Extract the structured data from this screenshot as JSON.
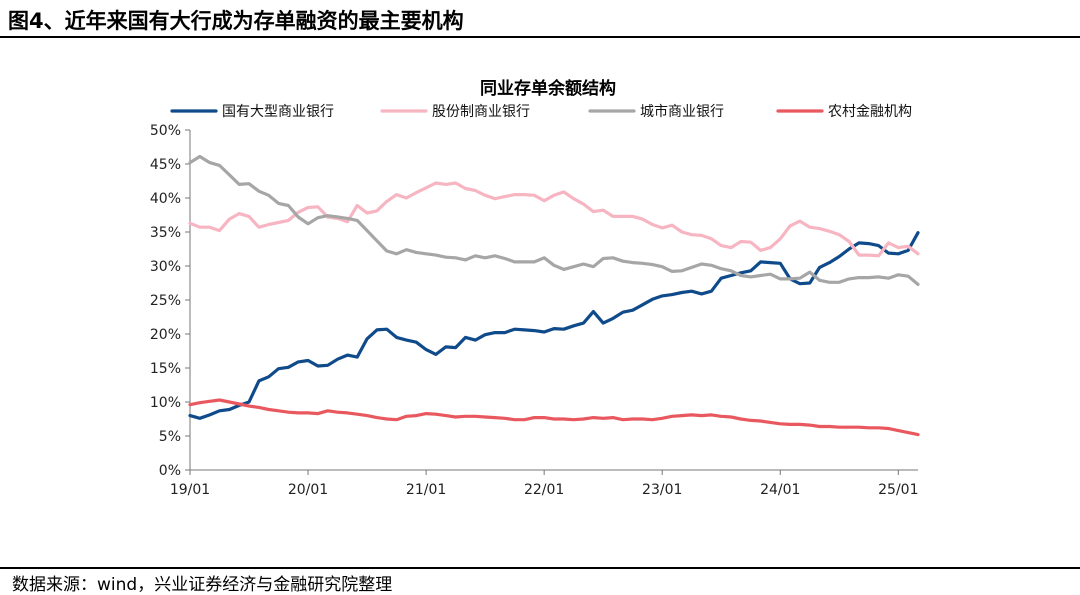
{
  "figure": {
    "title": "图4、近年来国有大行成为存单融资的最主要机构",
    "source": "数据来源：wind，兴业证券经济与金融研究院整理"
  },
  "colors": {
    "series_1": "#0f4a8a",
    "series_2": "#f7b5c2",
    "series_3": "#a6a6a6",
    "series_4": "#e8585e"
  },
  "chart_data": {
    "type": "line",
    "title": "同业存单余额结构",
    "xlabel": "",
    "ylabel": "",
    "ylim": [
      0,
      50
    ],
    "y_ticks": [
      "0%",
      "5%",
      "10%",
      "15%",
      "20%",
      "25%",
      "30%",
      "35%",
      "40%",
      "45%",
      "50%"
    ],
    "x_ticks": [
      "19/01",
      "20/01",
      "21/01",
      "22/01",
      "23/01",
      "24/01",
      "25/01"
    ],
    "x_range": [
      "2019-01",
      "2025-03"
    ],
    "grid": false,
    "legend": "top",
    "x": [
      "2019-01",
      "2019-02",
      "2019-03",
      "2019-04",
      "2019-05",
      "2019-06",
      "2019-07",
      "2019-08",
      "2019-09",
      "2019-10",
      "2019-11",
      "2019-12",
      "2020-01",
      "2020-02",
      "2020-03",
      "2020-04",
      "2020-05",
      "2020-06",
      "2020-07",
      "2020-08",
      "2020-09",
      "2020-10",
      "2020-11",
      "2020-12",
      "2021-01",
      "2021-02",
      "2021-03",
      "2021-04",
      "2021-05",
      "2021-06",
      "2021-07",
      "2021-08",
      "2021-09",
      "2021-10",
      "2021-11",
      "2021-12",
      "2022-01",
      "2022-02",
      "2022-03",
      "2022-04",
      "2022-05",
      "2022-06",
      "2022-07",
      "2022-08",
      "2022-09",
      "2022-10",
      "2022-11",
      "2022-12",
      "2023-01",
      "2023-02",
      "2023-03",
      "2023-04",
      "2023-05",
      "2023-06",
      "2023-07",
      "2023-08",
      "2023-09",
      "2023-10",
      "2023-11",
      "2023-12",
      "2024-01",
      "2024-02",
      "2024-03",
      "2024-04",
      "2024-05",
      "2024-06",
      "2024-07",
      "2024-08",
      "2024-09",
      "2024-10",
      "2024-11",
      "2024-12",
      "2025-01",
      "2025-02",
      "2025-03"
    ],
    "series": [
      {
        "name": "国有大型商业银行",
        "color": "#0f4a8a",
        "values": [
          8.0,
          7.6,
          8.1,
          8.7,
          8.9,
          9.5,
          10.0,
          13.1,
          13.7,
          14.9,
          15.1,
          15.9,
          16.1,
          15.3,
          15.4,
          16.3,
          16.9,
          16.6,
          19.3,
          20.6,
          20.7,
          19.5,
          19.1,
          18.8,
          17.7,
          17.0,
          18.1,
          18.0,
          19.5,
          19.1,
          19.9,
          20.2,
          20.2,
          20.7,
          20.6,
          20.5,
          20.3,
          20.8,
          20.7,
          21.2,
          21.6,
          23.3,
          21.6,
          22.3,
          23.2,
          23.5,
          24.3,
          25.1,
          25.6,
          25.8,
          26.1,
          26.3,
          25.9,
          26.3,
          28.2,
          28.6,
          29.0,
          29.3,
          30.6,
          30.5,
          30.4,
          28.1,
          27.4,
          27.5,
          29.8,
          30.5,
          31.4,
          32.5,
          33.4,
          33.3,
          33.0,
          31.9,
          31.8,
          32.3,
          34.9
        ]
      },
      {
        "name": "股份制商业银行",
        "color": "#f7b5c2",
        "values": [
          36.3,
          35.7,
          35.7,
          35.2,
          36.9,
          37.7,
          37.3,
          35.7,
          36.1,
          36.4,
          36.7,
          37.9,
          38.6,
          38.7,
          37.2,
          37.0,
          36.5,
          38.9,
          37.8,
          38.1,
          39.5,
          40.5,
          40.0,
          40.8,
          41.5,
          42.2,
          42.0,
          42.2,
          41.4,
          41.1,
          40.4,
          39.9,
          40.2,
          40.5,
          40.5,
          40.4,
          39.6,
          40.4,
          40.9,
          39.9,
          39.1,
          38.0,
          38.2,
          37.3,
          37.3,
          37.3,
          36.9,
          36.1,
          35.6,
          36.0,
          35.0,
          34.6,
          34.5,
          34.0,
          33.0,
          32.7,
          33.6,
          33.5,
          32.3,
          32.7,
          34.0,
          35.9,
          36.6,
          35.7,
          35.5,
          35.1,
          34.6,
          33.6,
          31.6,
          31.6,
          31.5,
          33.4,
          32.7,
          32.9,
          31.8
        ]
      },
      {
        "name": "城市商业银行",
        "color": "#a6a6a6",
        "values": [
          45.2,
          46.1,
          45.2,
          44.8,
          43.4,
          42.0,
          42.1,
          41.0,
          40.4,
          39.2,
          38.9,
          37.2,
          36.2,
          37.1,
          37.4,
          37.2,
          37.0,
          36.7,
          35.2,
          33.7,
          32.2,
          31.8,
          32.4,
          32.0,
          31.8,
          31.6,
          31.3,
          31.2,
          30.9,
          31.5,
          31.2,
          31.5,
          31.1,
          30.6,
          30.6,
          30.6,
          31.2,
          30.1,
          29.5,
          29.9,
          30.3,
          29.9,
          31.1,
          31.2,
          30.7,
          30.5,
          30.4,
          30.2,
          29.9,
          29.2,
          29.3,
          29.8,
          30.3,
          30.1,
          29.6,
          29.3,
          28.6,
          28.4,
          28.6,
          28.8,
          28.1,
          28.1,
          28.2,
          29.1,
          27.9,
          27.6,
          27.6,
          28.1,
          28.3,
          28.3,
          28.4,
          28.2,
          28.7,
          28.5,
          27.3
        ]
      },
      {
        "name": "农村金融机构",
        "color": "#e8585e",
        "values": [
          9.6,
          9.9,
          10.1,
          10.3,
          10.0,
          9.7,
          9.4,
          9.2,
          8.9,
          8.7,
          8.5,
          8.4,
          8.4,
          8.3,
          8.7,
          8.5,
          8.4,
          8.2,
          8.0,
          7.7,
          7.5,
          7.4,
          7.9,
          8.0,
          8.3,
          8.2,
          8.0,
          7.8,
          7.9,
          7.9,
          7.8,
          7.7,
          7.6,
          7.4,
          7.4,
          7.7,
          7.7,
          7.5,
          7.5,
          7.4,
          7.5,
          7.7,
          7.6,
          7.7,
          7.4,
          7.5,
          7.5,
          7.4,
          7.6,
          7.9,
          8.0,
          8.1,
          8.0,
          8.1,
          7.9,
          7.8,
          7.5,
          7.3,
          7.2,
          7.0,
          6.8,
          6.7,
          6.7,
          6.6,
          6.4,
          6.4,
          6.3,
          6.3,
          6.3,
          6.2,
          6.2,
          6.1,
          5.8,
          5.5,
          5.2
        ]
      }
    ]
  }
}
